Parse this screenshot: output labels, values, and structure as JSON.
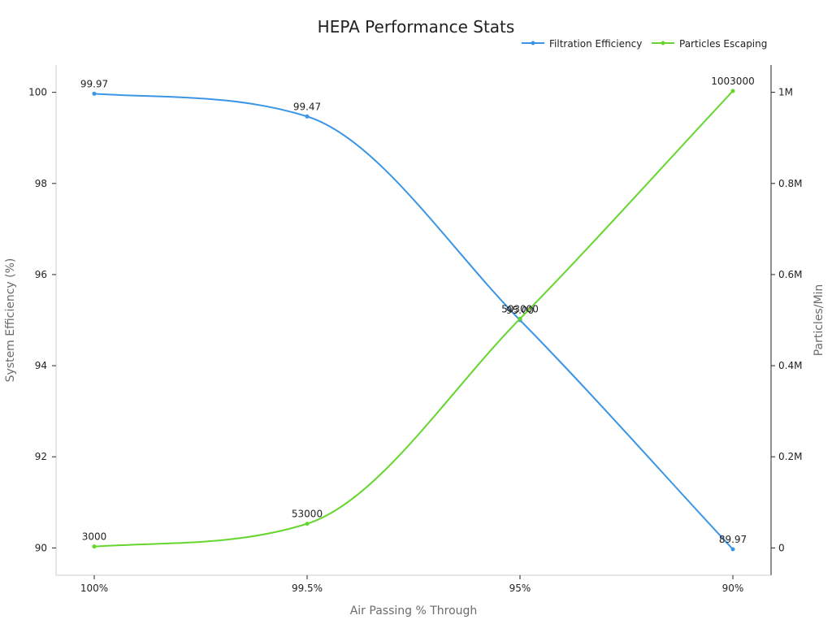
{
  "chart_data": {
    "type": "line",
    "title": "HEPA Performance Stats",
    "xlabel": "Air Passing % Through",
    "ylabel_left": "System Efficiency (%)",
    "ylabel_right": "Particles/Min",
    "categories": [
      "100%",
      "99.5%",
      "95%",
      "90%"
    ],
    "left_axis": {
      "ylim": [
        89.4,
        100.6
      ],
      "ticks": [
        90,
        92,
        94,
        96,
        98,
        100
      ],
      "tick_labels": [
        "90",
        "92",
        "94",
        "96",
        "98",
        "100"
      ]
    },
    "right_axis": {
      "ylim": [
        -60000,
        1060000
      ],
      "ticks": [
        0,
        200000,
        400000,
        600000,
        800000,
        1000000
      ],
      "tick_labels": [
        "0",
        "0.2M",
        "0.4M",
        "0.6M",
        "0.8M",
        "1M"
      ]
    },
    "legend_position": "top-right",
    "grid": false,
    "series": [
      {
        "name": "Filtration Efficiency",
        "axis": "left",
        "color": "#3b95e6",
        "values": [
          99.97,
          99.47,
          95.0,
          89.97
        ],
        "labels": [
          "99.97",
          "99.47",
          "95.00",
          "89.97"
        ]
      },
      {
        "name": "Particles Escaping",
        "axis": "right",
        "color": "#66d62e",
        "values": [
          3000,
          53000,
          503000,
          1003000
        ],
        "labels": [
          "3000",
          "53000",
          "503000",
          "1003000"
        ]
      }
    ]
  }
}
